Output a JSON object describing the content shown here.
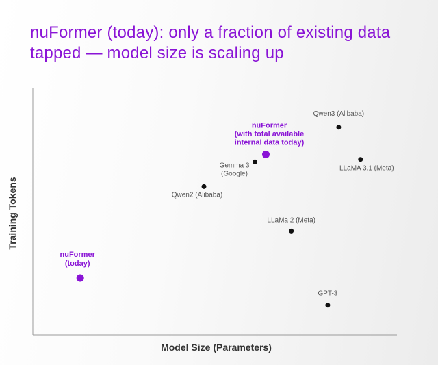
{
  "page": {
    "title_lines": [
      "nuFormer (today): only a fraction of existing data",
      "tapped — model size is scaling up"
    ]
  },
  "colors": {
    "accent": "#8a14d6",
    "point": "#111111",
    "axis": "#9a9a9a",
    "label": "#555555",
    "axis_title": "#333333"
  },
  "chart_data": {
    "type": "scatter",
    "title": "nuFormer (today): only a fraction of existing data tapped — model size is scaling up",
    "xlabel": "Model Size (Parameters)",
    "ylabel": "Training Tokens",
    "xlim": [
      0,
      100
    ],
    "ylim": [
      0,
      100
    ],
    "tick_labels": false,
    "grid": false,
    "legend": "none",
    "points": [
      {
        "label_lines": [
          "Qwen3 (Alibaba)"
        ],
        "x": 84,
        "y": 84,
        "highlight": false
      },
      {
        "label_lines": [
          "LLaMA 3.1 (Meta)"
        ],
        "x": 90,
        "y": 71,
        "highlight": false
      },
      {
        "label_lines": [
          "Gemma 3",
          "(Google)"
        ],
        "x": 61,
        "y": 70,
        "highlight": false
      },
      {
        "label_lines": [
          "nuFormer",
          "(with total available",
          "internal data today)"
        ],
        "x": 64,
        "y": 73,
        "highlight": true
      },
      {
        "label_lines": [
          "Qwen2 (Alibaba)"
        ],
        "x": 47,
        "y": 60,
        "highlight": false
      },
      {
        "label_lines": [
          "LLaMa 2 (Meta)"
        ],
        "x": 71,
        "y": 42,
        "highlight": false
      },
      {
        "label_lines": [
          "nuFormer",
          "(today)"
        ],
        "x": 13,
        "y": 23,
        "highlight": true
      },
      {
        "label_lines": [
          "GPT-3"
        ],
        "x": 81,
        "y": 12,
        "highlight": false
      }
    ]
  }
}
